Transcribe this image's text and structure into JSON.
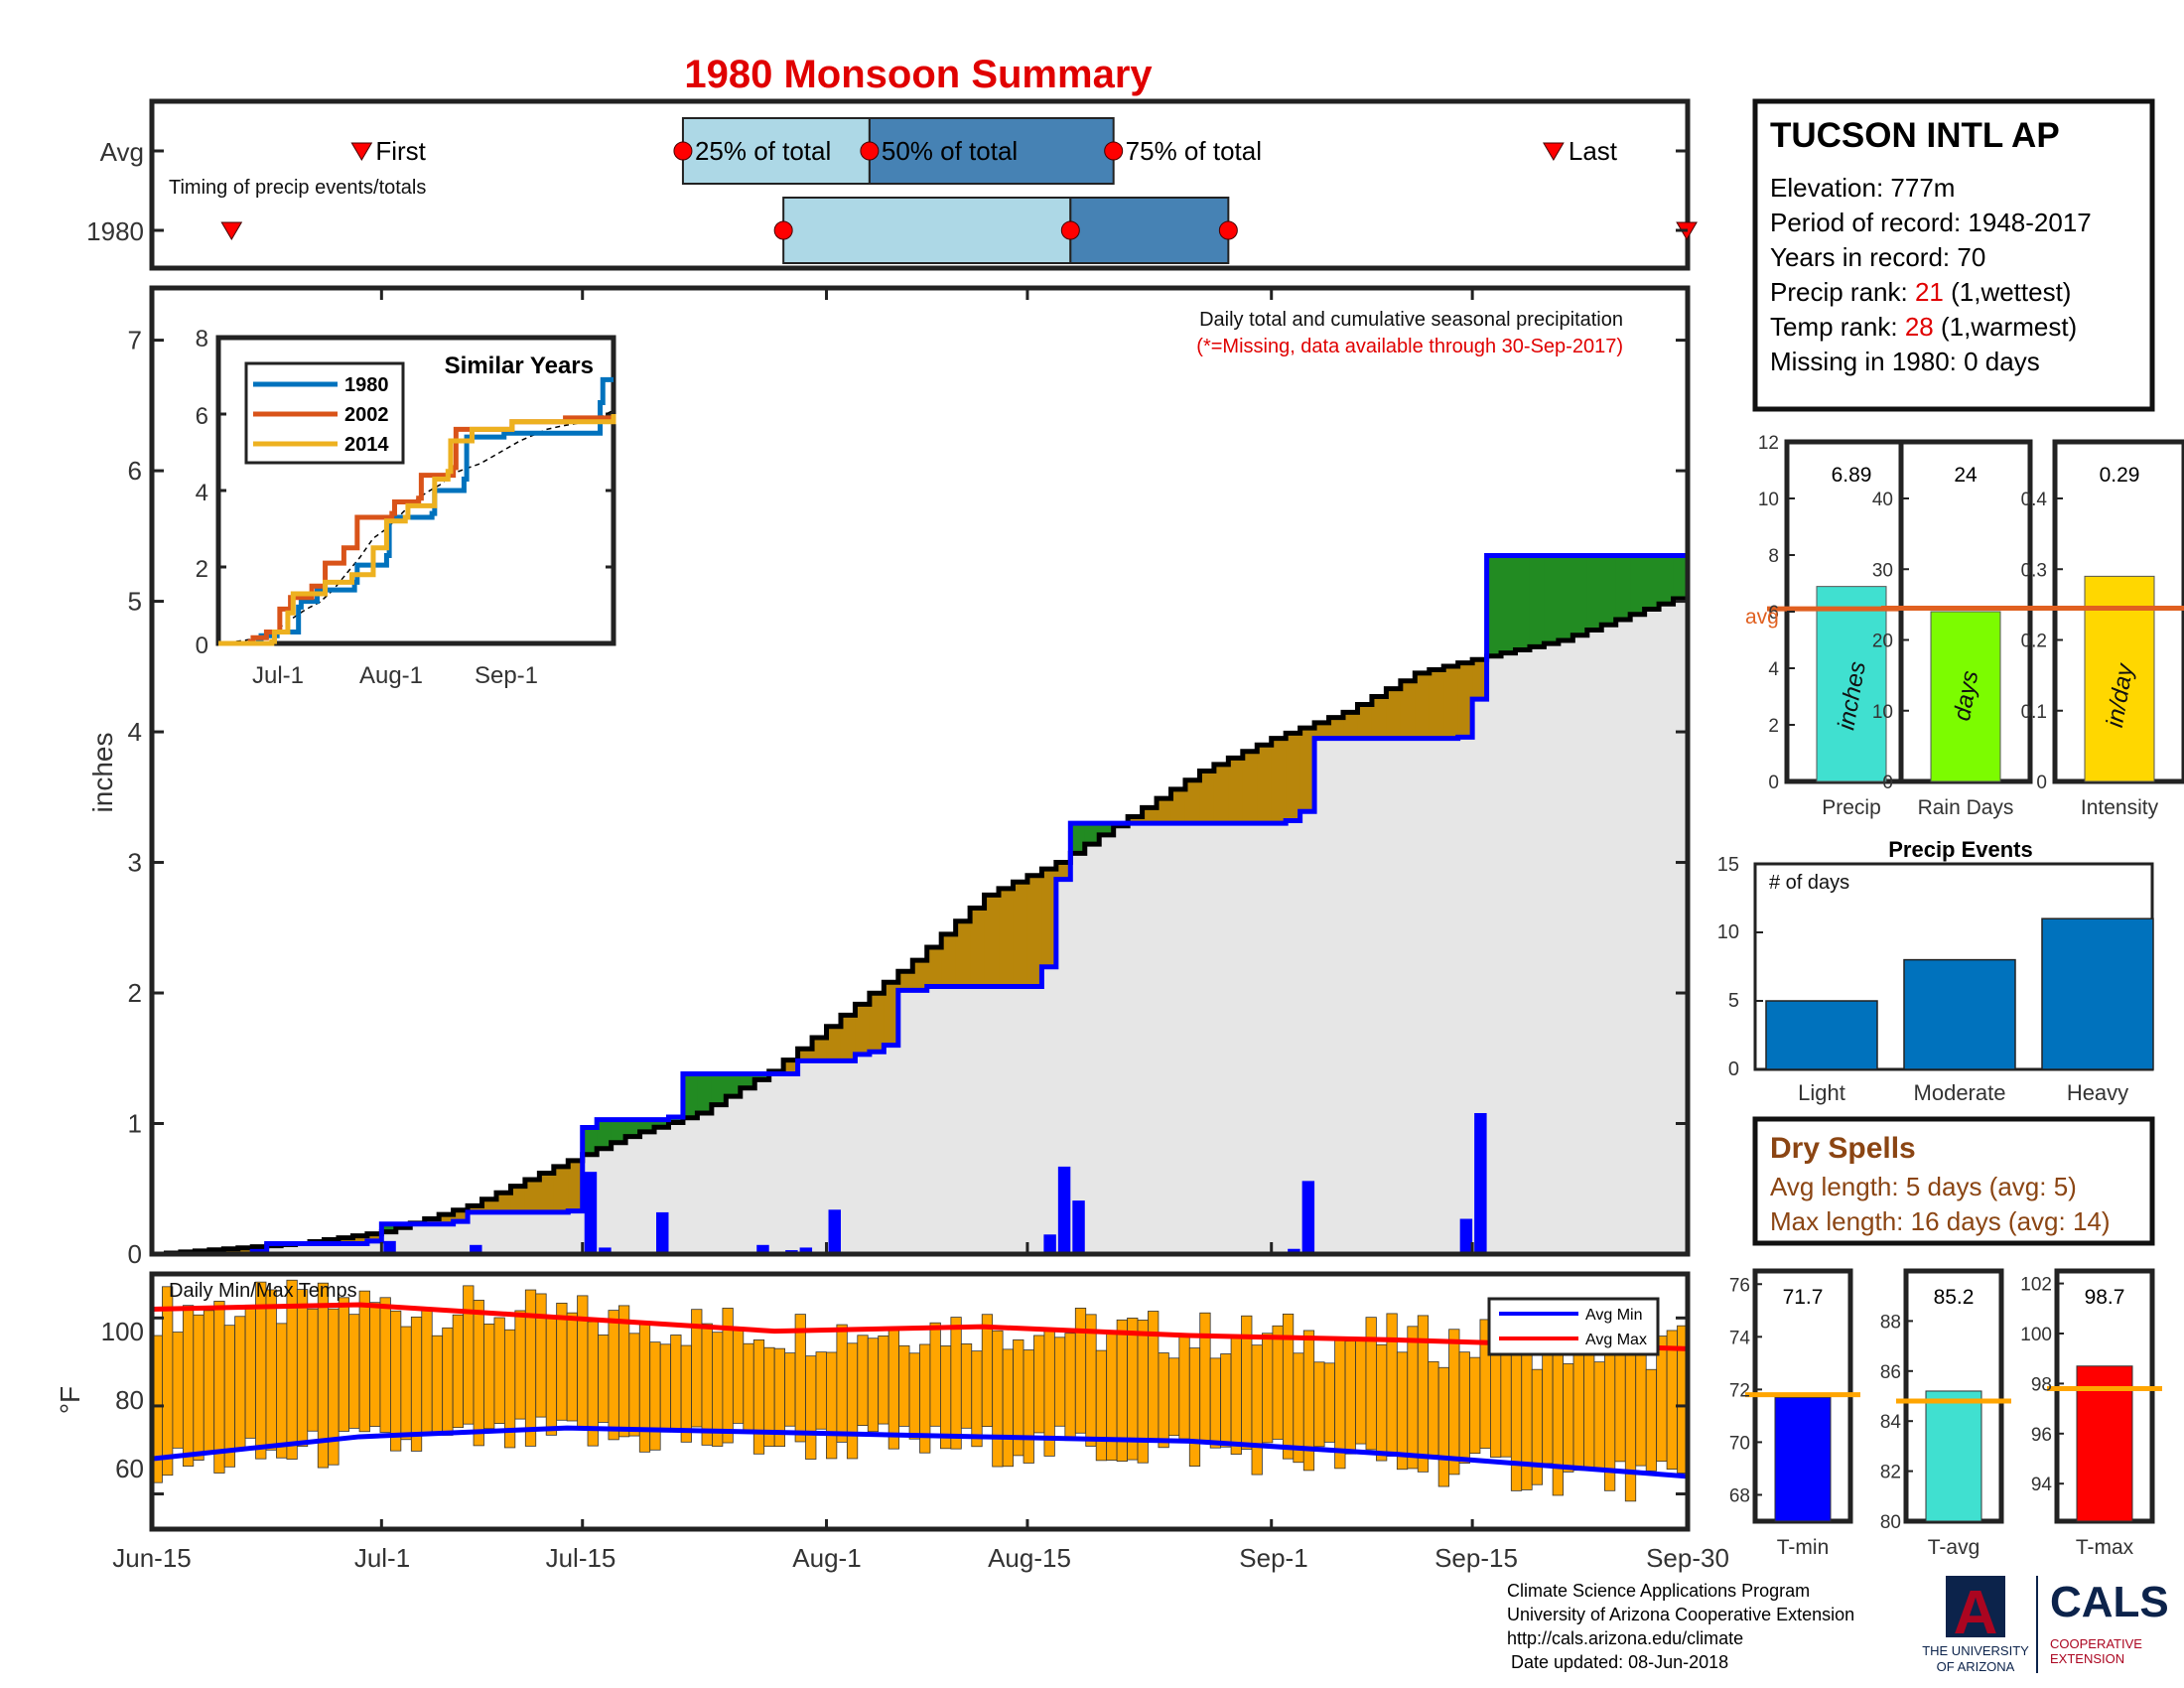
{
  "title": "1980 Monsoon Summary",
  "timing": {
    "avg_label": "Avg",
    "year_label": "1980",
    "caption": "Timing of precip events/totals",
    "first_label": "First",
    "last_label": "Last",
    "p25_label": "25% of total",
    "p50_label": "50% of total",
    "p75_label": "75% of total",
    "avg_first": "Jul-1",
    "avg_25": "Jul-22",
    "avg_50": "Aug-4",
    "avg_75": "Aug-21",
    "avg_last": "Sep-21",
    "year_first": "Jun-20",
    "year_25": "Jul-29",
    "year_50": "Aug-18",
    "year_75": "Aug-29",
    "year_last": "Sep-28"
  },
  "station": {
    "name": "TUCSON INTL AP",
    "elevation": "Elevation: 777m",
    "period": "Period of record: 1948-2017",
    "years": "Years in record: 70",
    "precip_rank_prefix": "Precip rank: ",
    "precip_rank_value": "21",
    "precip_rank_suffix": " (1,wettest)",
    "temp_rank_prefix": "Temp rank: ",
    "temp_rank_value": "28",
    "temp_rank_suffix": " (1,warmest)",
    "missing": "Missing in 1980: 0 days"
  },
  "main_chart": {
    "note1": "Daily total and cumulative seasonal precipitation",
    "note2": "(*=Missing, data available through 30-Sep-2017)",
    "ylabel": "inches",
    "ylim": [
      0,
      7.4
    ],
    "y_ticks": [
      0,
      1,
      2,
      3,
      4,
      5,
      6,
      7
    ],
    "x_ticks": [
      "Jun-15",
      "Jul-1",
      "Jul-15",
      "Aug-1",
      "Aug-15",
      "Sep-1",
      "Sep-15",
      "Sep-30"
    ],
    "colors": {
      "above_avg": "#228b22",
      "below_avg": "#b8860b",
      "year_line": "#0000ff",
      "avg_line": "#000000",
      "bars": "#0000ff",
      "fill": "#e6e6e6"
    }
  },
  "chart_data": [
    {
      "type": "line",
      "name": "cumulative-precipitation",
      "title": "Daily total and cumulative seasonal precipitation",
      "ylabel": "inches",
      "ylim": [
        0,
        7.4
      ],
      "avg_cumulative": [
        [
          0,
          0
        ],
        [
          10,
          0.08
        ],
        [
          16,
          0.17
        ],
        [
          22,
          0.37
        ],
        [
          28,
          0.67
        ],
        [
          33,
          0.9
        ],
        [
          38,
          1.08
        ],
        [
          43,
          1.4
        ],
        [
          48,
          1.83
        ],
        [
          53,
          2.25
        ],
        [
          58,
          2.75
        ],
        [
          63,
          3.0
        ],
        [
          68,
          3.35
        ],
        [
          73,
          3.7
        ],
        [
          78,
          3.95
        ],
        [
          83,
          4.15
        ],
        [
          88,
          4.45
        ],
        [
          93,
          4.58
        ],
        [
          98,
          4.7
        ],
        [
          103,
          4.9
        ],
        [
          108,
          5.1
        ],
        [
          113,
          5.3
        ],
        [
          118,
          5.45
        ],
        [
          123,
          5.6
        ],
        [
          128,
          5.68
        ],
        [
          133,
          5.74
        ],
        [
          138,
          5.8
        ],
        [
          143,
          5.92
        ],
        [
          148,
          6.1
        ]
      ],
      "year_cumulative": [
        [
          0,
          0
        ],
        [
          7,
          0.02
        ],
        [
          8,
          0.08
        ],
        [
          15,
          0.1
        ],
        [
          16,
          0.23
        ],
        [
          21,
          0.25
        ],
        [
          22,
          0.32
        ],
        [
          29,
          0.33
        ],
        [
          30,
          0.97
        ],
        [
          31,
          1.03
        ],
        [
          36,
          1.05
        ],
        [
          37,
          1.38
        ],
        [
          44,
          1.38
        ],
        [
          45,
          1.48
        ],
        [
          49,
          1.53
        ],
        [
          50,
          1.55
        ],
        [
          51,
          1.6
        ],
        [
          52,
          2.02
        ],
        [
          54,
          2.05
        ],
        [
          62,
          2.2
        ],
        [
          63,
          2.87
        ],
        [
          64,
          3.3
        ],
        [
          79,
          3.32
        ],
        [
          80,
          3.39
        ],
        [
          81,
          3.95
        ],
        [
          91,
          3.96
        ],
        [
          92,
          4.25
        ],
        [
          93,
          5.35
        ],
        [
          106,
          5.35
        ],
        [
          107,
          5.37
        ],
        [
          142,
          5.39
        ],
        [
          143,
          6.26
        ],
        [
          144,
          6.84
        ],
        [
          148,
          6.89
        ]
      ],
      "daily_bars": [
        [
          7,
          0.06
        ],
        [
          16,
          0.1
        ],
        [
          22,
          0.07
        ],
        [
          30,
          0.63
        ],
        [
          31,
          0.05
        ],
        [
          35,
          0.32
        ],
        [
          42,
          0.07
        ],
        [
          44,
          0.03
        ],
        [
          45,
          0.05
        ],
        [
          47,
          0.34
        ],
        [
          62,
          0.15
        ],
        [
          63,
          0.67
        ],
        [
          64,
          0.41
        ],
        [
          79,
          0.04
        ],
        [
          80,
          0.56
        ],
        [
          91,
          0.27
        ],
        [
          92,
          1.08
        ],
        [
          142,
          0.38
        ],
        [
          143,
          0.77
        ],
        [
          144,
          0.34
        ]
      ],
      "x_labels": [
        "Jun-15",
        "Jul-1",
        "Jul-15",
        "Aug-1",
        "Aug-15",
        "Sep-1",
        "Sep-15",
        "Sep-30"
      ]
    },
    {
      "type": "line",
      "title": "Similar Years",
      "series": [
        {
          "name": "1980",
          "color": "#0072bd",
          "values": [
            [
              0,
              0
            ],
            [
              15,
              0.05
            ],
            [
              16,
              0.2
            ],
            [
              22,
              0.3
            ],
            [
              30,
              0.95
            ],
            [
              31,
              1.1
            ],
            [
              37,
              1.4
            ],
            [
              51,
              1.6
            ],
            [
              52,
              2.05
            ],
            [
              63,
              2.3
            ],
            [
              64,
              3.3
            ],
            [
              80,
              3.4
            ],
            [
              81,
              4.0
            ],
            [
              92,
              4.3
            ],
            [
              93,
              5.4
            ],
            [
              106,
              5.4
            ],
            [
              107,
              5.5
            ],
            [
              143,
              6.3
            ],
            [
              144,
              6.9
            ],
            [
              148,
              6.9
            ]
          ]
        },
        {
          "name": "2002",
          "color": "#d95319",
          "values": [
            [
              0,
              0
            ],
            [
              12,
              0.05
            ],
            [
              13,
              0.15
            ],
            [
              18,
              0.3
            ],
            [
              23,
              0.9
            ],
            [
              27,
              1.2
            ],
            [
              35,
              1.5
            ],
            [
              40,
              2.1
            ],
            [
              47,
              2.5
            ],
            [
              52,
              3.3
            ],
            [
              65,
              3.4
            ],
            [
              66,
              3.7
            ],
            [
              75,
              3.8
            ],
            [
              76,
              4.4
            ],
            [
              88,
              4.6
            ],
            [
              89,
              5.6
            ],
            [
              110,
              5.8
            ],
            [
              130,
              5.9
            ],
            [
              148,
              5.9
            ]
          ]
        },
        {
          "name": "2014",
          "color": "#edb120",
          "values": [
            [
              0,
              0
            ],
            [
              20,
              0.05
            ],
            [
              21,
              0.3
            ],
            [
              26,
              0.8
            ],
            [
              28,
              1.3
            ],
            [
              40,
              1.6
            ],
            [
              50,
              1.8
            ],
            [
              58,
              2.5
            ],
            [
              63,
              3.2
            ],
            [
              70,
              3.3
            ],
            [
              71,
              3.6
            ],
            [
              80,
              3.6
            ],
            [
              81,
              4.3
            ],
            [
              86,
              4.5
            ],
            [
              87,
              5.3
            ],
            [
              95,
              5.6
            ],
            [
              110,
              5.8
            ],
            [
              148,
              6.0
            ]
          ]
        }
      ],
      "ylim": [
        0,
        8
      ],
      "y_ticks": [
        0,
        2,
        4,
        6,
        8
      ],
      "x_labels": [
        "Jul-1",
        "Aug-1",
        "Sep-1"
      ]
    },
    {
      "type": "bar",
      "title": "Daily Min/Max Temps",
      "ylabel": "°F",
      "ylim": [
        52,
        110
      ],
      "y_ticks": [
        60,
        80,
        100
      ],
      "legend": [
        "Avg Min",
        "Avg Max"
      ],
      "avg_max": [
        [
          0,
          102
        ],
        [
          20,
          103
        ],
        [
          40,
          100
        ],
        [
          60,
          97
        ],
        [
          80,
          98
        ],
        [
          100,
          96
        ],
        [
          120,
          95
        ],
        [
          148,
          93
        ]
      ],
      "avg_min": [
        [
          0,
          68
        ],
        [
          20,
          73
        ],
        [
          40,
          75
        ],
        [
          60,
          74
        ],
        [
          80,
          73
        ],
        [
          100,
          72
        ],
        [
          120,
          69
        ],
        [
          148,
          64
        ]
      ]
    },
    {
      "type": "bar",
      "title": "Precip",
      "categories": [
        "Precip",
        "Rain Days",
        "Intensity"
      ],
      "values": [
        6.89,
        24,
        0.29
      ],
      "avg": [
        6.1,
        24.5,
        0.245
      ],
      "ylims": [
        [
          0,
          12
        ],
        [
          0,
          48
        ],
        [
          0,
          0.48
        ]
      ]
    },
    {
      "type": "bar",
      "title": "Precip Events",
      "categories": [
        "Light",
        "Moderate",
        "Heavy"
      ],
      "values": [
        5,
        8,
        11
      ],
      "ylim": [
        0,
        15
      ]
    },
    {
      "type": "bar",
      "title": "Temperatures",
      "categories": [
        "T-min",
        "T-avg",
        "T-max"
      ],
      "values": [
        71.7,
        85.2,
        98.7
      ],
      "avg": [
        71.8,
        84.8,
        97.8
      ],
      "ylims": [
        [
          67,
          76.5
        ],
        [
          80,
          90
        ],
        [
          92.5,
          102.5
        ]
      ]
    }
  ],
  "inset": {
    "title": "Similar Years",
    "legend": [
      "1980",
      "2002",
      "2014"
    ],
    "y_ticks": [
      "0",
      "2",
      "4",
      "6",
      "8"
    ],
    "x_ticks": [
      "Jul-1",
      "Aug-1",
      "Sep-1"
    ]
  },
  "temps": {
    "title": "Daily Min/Max Temps",
    "ylabel": "°F",
    "legend_min": "Avg Min",
    "legend_max": "Avg Max",
    "y_ticks": [
      "60",
      "80",
      "100"
    ]
  },
  "summary_bars": [
    {
      "label": "Precip",
      "value_text": "6.89",
      "unit": "inches",
      "avg_text": "avg",
      "color": "#40e0d0",
      "ticks": [
        "0",
        "2",
        "4",
        "6",
        "8",
        "10",
        "12"
      ]
    },
    {
      "label": "Rain Days",
      "value_text": "24",
      "unit": "days",
      "color": "#7cfc00",
      "ticks": [
        "0",
        "10",
        "20",
        "30",
        "40"
      ]
    },
    {
      "label": "Intensity",
      "value_text": "0.29",
      "unit": "in/day",
      "color": "#ffd700",
      "ticks": [
        "0",
        "0.1",
        "0.2",
        "0.3",
        "0.4"
      ]
    }
  ],
  "events": {
    "title": "Precip Events",
    "ylabel": "# of days",
    "labels": [
      "Light",
      "Moderate",
      "Heavy"
    ],
    "ticks": [
      "0",
      "5",
      "10",
      "15"
    ]
  },
  "dry_spells": {
    "title": "Dry Spells",
    "avg_length": "Avg length: 5 days (avg: 5)",
    "max_length": "Max length: 16 days (avg: 14)"
  },
  "temp_bars": [
    {
      "label": "T-min",
      "value_text": "71.7",
      "color": "#0000ff",
      "ticks": [
        "68",
        "70",
        "72",
        "74",
        "76"
      ]
    },
    {
      "label": "T-avg",
      "value_text": "85.2",
      "color": "#40e0d0",
      "ticks": [
        "80",
        "82",
        "84",
        "86",
        "88"
      ]
    },
    {
      "label": "T-max",
      "value_text": "98.7",
      "color": "#ff0000",
      "ticks": [
        "94",
        "96",
        "98",
        "100",
        "102"
      ]
    }
  ],
  "footer": {
    "line1": "Climate Science Applications Program",
    "line2": "University of Arizona Cooperative Extension",
    "line3": "http://cals.arizona.edu/climate",
    "line4": "Date updated: 08-Jun-2018",
    "ua_logo": "A",
    "ua_text1": "THE UNIVERSITY",
    "ua_text2": "OF ARIZONA",
    "cals_text": "CALS",
    "cals_sub1": "COOPERATIVE",
    "cals_sub2": "EXTENSION"
  }
}
